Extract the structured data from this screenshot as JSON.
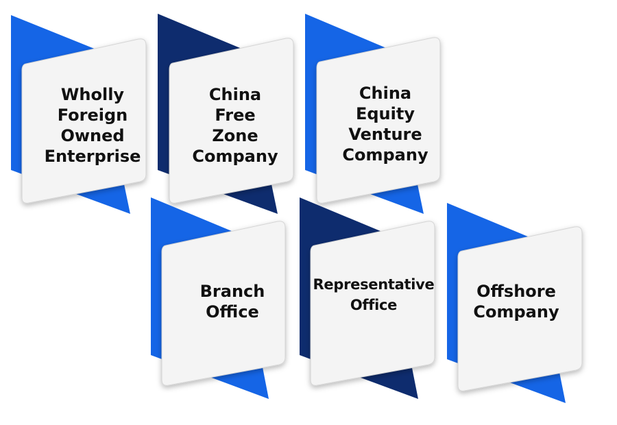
{
  "colors": {
    "bright_blue": "#1565e6",
    "navy": "#0e2c6e",
    "card_fill": "#f4f4f4",
    "card_border": "#d4d4d4",
    "text": "#111111"
  },
  "cards": [
    {
      "label": "Wholly\nForeign\nOwned\nEnterprise",
      "accent": "bright_blue"
    },
    {
      "label": "China\nFree\nZone\nCompany",
      "accent": "navy"
    },
    {
      "label": "China\nEquity\nVenture\nCompany",
      "accent": "bright_blue"
    },
    {
      "label": "Branch\nOffice",
      "accent": "bright_blue"
    },
    {
      "label": "Representative\nOffice",
      "accent": "navy"
    },
    {
      "label": "Offshore\nCompany",
      "accent": "bright_blue"
    }
  ]
}
